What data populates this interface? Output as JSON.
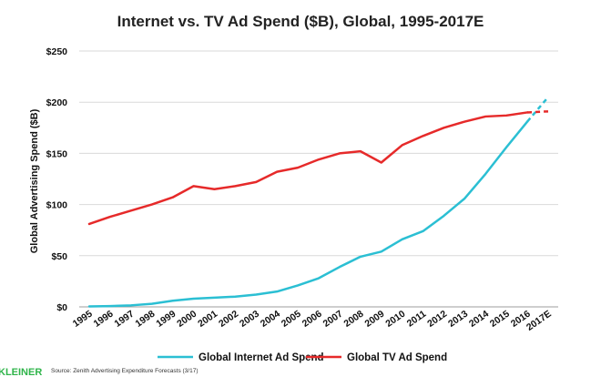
{
  "chart_data": {
    "type": "line",
    "title": "Internet vs. TV Ad Spend ($B), Global, 1995-2017E",
    "xlabel": "",
    "ylabel": "Global Advertising Spend ($B)",
    "categories": [
      "1995",
      "1996",
      "1997",
      "1998",
      "1999",
      "2000",
      "2001",
      "2002",
      "2003",
      "2004",
      "2005",
      "2006",
      "2007",
      "2008",
      "2009",
      "2010",
      "2011",
      "2012",
      "2013",
      "2014",
      "2015",
      "2016",
      "2017E"
    ],
    "ylim": [
      0,
      250
    ],
    "yticks": [
      0,
      50,
      100,
      150,
      200,
      250
    ],
    "ytick_labels": [
      "$0",
      "$50",
      "$100",
      "$150",
      "$200",
      "$250"
    ],
    "grid": true,
    "legend_position": "bottom",
    "series": [
      {
        "name": "Global Internet Ad Spend",
        "color": "#2bbfd3",
        "values": [
          0.5,
          0.8,
          1.5,
          3,
          6,
          8,
          9,
          10,
          12,
          15,
          21,
          28,
          39,
          49,
          54,
          66,
          74,
          89,
          106,
          130,
          156,
          181,
          205
        ],
        "last_point_estimate": true
      },
      {
        "name": "Global TV Ad Spend",
        "color": "#e62a2a",
        "values": [
          81,
          88,
          94,
          100,
          107,
          118,
          115,
          118,
          122,
          132,
          136,
          144,
          150,
          152,
          141,
          158,
          167,
          175,
          181,
          186,
          187,
          190,
          191
        ],
        "last_point_estimate": true
      }
    ]
  },
  "footer": {
    "logo_text": "KLEINER",
    "source_text": "Source: Zenith Advertising Expenditure Forecasts (3/17)"
  }
}
